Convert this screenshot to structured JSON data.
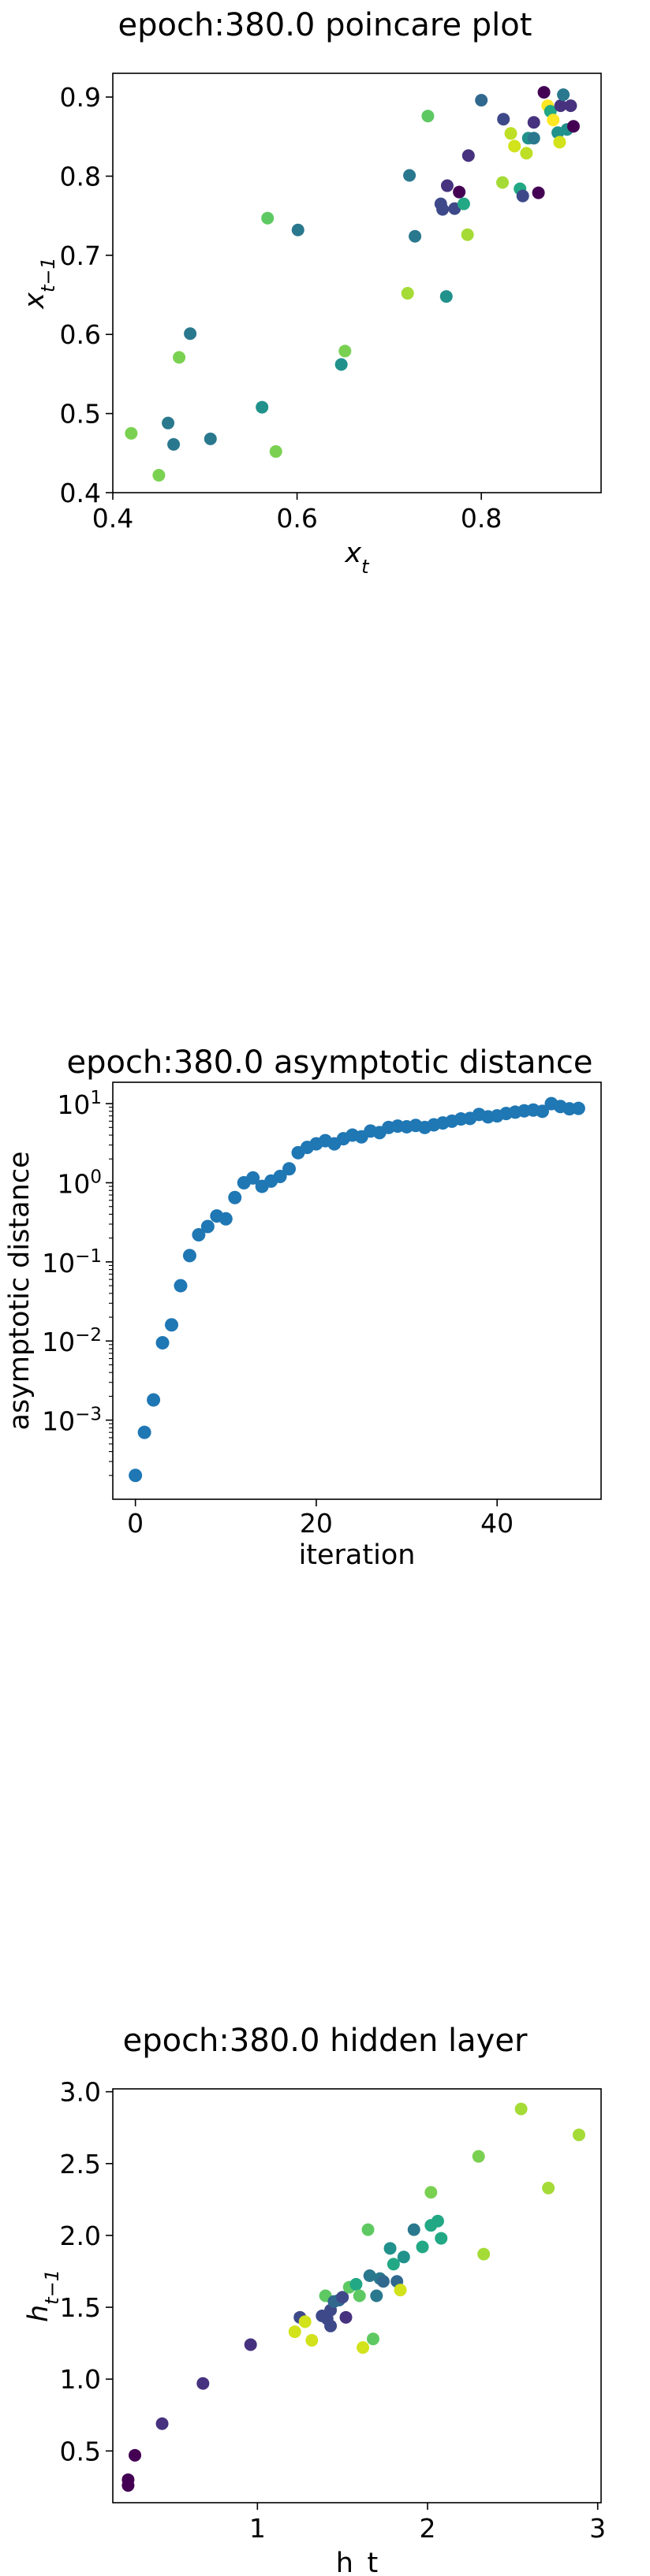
{
  "chart_data": [
    {
      "type": "scatter",
      "title": "epoch:380.0 poincare plot",
      "xlabel": "x_t",
      "ylabel": "x_t−1",
      "xlim": [
        0.4,
        0.93
      ],
      "ylim": [
        0.4,
        0.93
      ],
      "xticks": [
        0.4,
        0.6,
        0.8
      ],
      "yticks": [
        0.4,
        0.5,
        0.6,
        0.7,
        0.8,
        0.9
      ],
      "xtick_labels": [
        "0.4",
        "0.6",
        "0.8"
      ],
      "ytick_labels": [
        "0.4",
        "0.5",
        "0.6",
        "0.7",
        "0.8",
        "0.9"
      ],
      "colormap": "viridis",
      "points": [
        {
          "x": 0.42,
          "y": 0.475,
          "c": "#7ad151"
        },
        {
          "x": 0.45,
          "y": 0.422,
          "c": "#7ad151"
        },
        {
          "x": 0.46,
          "y": 0.488,
          "c": "#2a788e"
        },
        {
          "x": 0.466,
          "y": 0.461,
          "c": "#2a788e"
        },
        {
          "x": 0.472,
          "y": 0.571,
          "c": "#7ad151"
        },
        {
          "x": 0.484,
          "y": 0.601,
          "c": "#2a788e"
        },
        {
          "x": 0.506,
          "y": 0.468,
          "c": "#2a788e"
        },
        {
          "x": 0.562,
          "y": 0.508,
          "c": "#21918c"
        },
        {
          "x": 0.568,
          "y": 0.747,
          "c": "#5ec962"
        },
        {
          "x": 0.577,
          "y": 0.452,
          "c": "#7ad151"
        },
        {
          "x": 0.601,
          "y": 0.732,
          "c": "#2a788e"
        },
        {
          "x": 0.648,
          "y": 0.562,
          "c": "#21918c"
        },
        {
          "x": 0.652,
          "y": 0.579,
          "c": "#7ad151"
        },
        {
          "x": 0.72,
          "y": 0.652,
          "c": "#a5db36"
        },
        {
          "x": 0.722,
          "y": 0.801,
          "c": "#2a788e"
        },
        {
          "x": 0.728,
          "y": 0.724,
          "c": "#2a788e"
        },
        {
          "x": 0.742,
          "y": 0.876,
          "c": "#5ec962"
        },
        {
          "x": 0.756,
          "y": 0.765,
          "c": "#3e4989"
        },
        {
          "x": 0.758,
          "y": 0.758,
          "c": "#3e4989"
        },
        {
          "x": 0.762,
          "y": 0.648,
          "c": "#21918c"
        },
        {
          "x": 0.763,
          "y": 0.788,
          "c": "#46327e"
        },
        {
          "x": 0.771,
          "y": 0.759,
          "c": "#3e4989"
        },
        {
          "x": 0.776,
          "y": 0.78,
          "c": "#440154"
        },
        {
          "x": 0.781,
          "y": 0.765,
          "c": "#22a884"
        },
        {
          "x": 0.785,
          "y": 0.726,
          "c": "#a5db36"
        },
        {
          "x": 0.786,
          "y": 0.826,
          "c": "#46327e"
        },
        {
          "x": 0.8,
          "y": 0.896,
          "c": "#31688e"
        },
        {
          "x": 0.823,
          "y": 0.792,
          "c": "#a5db36"
        },
        {
          "x": 0.824,
          "y": 0.872,
          "c": "#3e4989"
        },
        {
          "x": 0.832,
          "y": 0.854,
          "c": "#bddf26"
        },
        {
          "x": 0.836,
          "y": 0.838,
          "c": "#d2e21b"
        },
        {
          "x": 0.842,
          "y": 0.784,
          "c": "#22a884"
        },
        {
          "x": 0.845,
          "y": 0.775,
          "c": "#3e4989"
        },
        {
          "x": 0.849,
          "y": 0.829,
          "c": "#bddf26"
        },
        {
          "x": 0.851,
          "y": 0.848,
          "c": "#21918c"
        },
        {
          "x": 0.857,
          "y": 0.868,
          "c": "#46327e"
        },
        {
          "x": 0.857,
          "y": 0.848,
          "c": "#2a788e"
        },
        {
          "x": 0.862,
          "y": 0.779,
          "c": "#440154"
        },
        {
          "x": 0.868,
          "y": 0.906,
          "c": "#440154"
        },
        {
          "x": 0.872,
          "y": 0.889,
          "c": "#fde725"
        },
        {
          "x": 0.875,
          "y": 0.882,
          "c": "#22a884"
        },
        {
          "x": 0.878,
          "y": 0.871,
          "c": "#fde725"
        },
        {
          "x": 0.883,
          "y": 0.855,
          "c": "#21918c"
        },
        {
          "x": 0.885,
          "y": 0.843,
          "c": "#d2e21b"
        },
        {
          "x": 0.886,
          "y": 0.889,
          "c": "#46327e"
        },
        {
          "x": 0.889,
          "y": 0.903,
          "c": "#2a788e"
        },
        {
          "x": 0.893,
          "y": 0.859,
          "c": "#21918c"
        },
        {
          "x": 0.897,
          "y": 0.889,
          "c": "#46327e"
        },
        {
          "x": 0.9,
          "y": 0.863,
          "c": "#440154"
        }
      ]
    },
    {
      "type": "scatter",
      "title": "epoch:380.0 asymptotic distance",
      "xlabel": "iteration",
      "ylabel": "asymptotic distance",
      "yscale": "log",
      "xlim": [
        -2.5,
        51.5
      ],
      "ylim_log10": [
        -4.0,
        1.27
      ],
      "xticks": [
        0,
        20,
        40
      ],
      "xtick_labels": [
        "0",
        "20",
        "40"
      ],
      "yticks_log10": [
        -3,
        -2,
        -1,
        0,
        1
      ],
      "ytick_labels": [
        "10−3",
        "10−2",
        "10−1",
        "100",
        "101"
      ],
      "color": "#1f77b4",
      "x": [
        0,
        1,
        2,
        3,
        4,
        5,
        6,
        7,
        8,
        9,
        10,
        11,
        12,
        13,
        14,
        15,
        16,
        17,
        18,
        19,
        20,
        21,
        22,
        23,
        24,
        25,
        26,
        27,
        28,
        29,
        30,
        31,
        32,
        33,
        34,
        35,
        36,
        37,
        38,
        39,
        40,
        41,
        42,
        43,
        44,
        45,
        46,
        47,
        48,
        49
      ],
      "y": [
        0.0002,
        0.0007,
        0.0018,
        0.0095,
        0.016,
        0.05,
        0.12,
        0.22,
        0.28,
        0.38,
        0.35,
        0.65,
        1.0,
        1.15,
        0.9,
        1.05,
        1.2,
        1.5,
        2.4,
        2.8,
        3.1,
        3.4,
        3.1,
        3.6,
        4.0,
        3.8,
        4.5,
        4.3,
        5.0,
        5.2,
        5.1,
        5.3,
        5.0,
        5.4,
        5.7,
        6.0,
        6.4,
        6.5,
        7.3,
        6.8,
        7.0,
        7.5,
        7.8,
        8.1,
        8.3,
        8.0,
        10.0,
        9.2,
        8.6,
        8.7
      ]
    },
    {
      "type": "scatter",
      "title": "epoch:380.0 hidden layer",
      "xlabel": "h_t",
      "ylabel": "h_t−1",
      "xlim": [
        0.15,
        3.02
      ],
      "ylim": [
        0.14,
        3.02
      ],
      "xticks": [
        1,
        2,
        3
      ],
      "xtick_labels": [
        "1",
        "2",
        "3"
      ],
      "yticks": [
        0.5,
        1.0,
        1.5,
        2.0,
        2.5,
        3.0
      ],
      "ytick_labels": [
        "0.5",
        "1.0",
        "1.5",
        "2.0",
        "2.5",
        "3.0"
      ],
      "colormap": "viridis",
      "points": [
        {
          "x": 0.24,
          "y": 0.26,
          "c": "#440154"
        },
        {
          "x": 0.24,
          "y": 0.3,
          "c": "#440154"
        },
        {
          "x": 0.28,
          "y": 0.47,
          "c": "#440154"
        },
        {
          "x": 0.44,
          "y": 0.69,
          "c": "#46327e"
        },
        {
          "x": 0.68,
          "y": 0.97,
          "c": "#46327e"
        },
        {
          "x": 0.96,
          "y": 1.24,
          "c": "#46327e"
        },
        {
          "x": 1.22,
          "y": 1.33,
          "c": "#d2e21b"
        },
        {
          "x": 1.25,
          "y": 1.43,
          "c": "#3e4989"
        },
        {
          "x": 1.28,
          "y": 1.4,
          "c": "#d2e21b"
        },
        {
          "x": 1.32,
          "y": 1.27,
          "c": "#d2e21b"
        },
        {
          "x": 1.38,
          "y": 1.44,
          "c": "#3e4989"
        },
        {
          "x": 1.4,
          "y": 1.58,
          "c": "#5ec962"
        },
        {
          "x": 1.41,
          "y": 1.42,
          "c": "#3e4989"
        },
        {
          "x": 1.43,
          "y": 1.48,
          "c": "#3e4989"
        },
        {
          "x": 1.43,
          "y": 1.37,
          "c": "#3e4989"
        },
        {
          "x": 1.45,
          "y": 1.54,
          "c": "#31688e"
        },
        {
          "x": 1.48,
          "y": 1.55,
          "c": "#31688e"
        },
        {
          "x": 1.5,
          "y": 1.57,
          "c": "#3e4989"
        },
        {
          "x": 1.52,
          "y": 1.43,
          "c": "#46327e"
        },
        {
          "x": 1.54,
          "y": 1.64,
          "c": "#5ec962"
        },
        {
          "x": 1.58,
          "y": 1.66,
          "c": "#22a884"
        },
        {
          "x": 1.6,
          "y": 1.58,
          "c": "#5ec962"
        },
        {
          "x": 1.62,
          "y": 1.22,
          "c": "#d2e21b"
        },
        {
          "x": 1.65,
          "y": 2.04,
          "c": "#5ec962"
        },
        {
          "x": 1.66,
          "y": 1.72,
          "c": "#2a788e"
        },
        {
          "x": 1.68,
          "y": 1.28,
          "c": "#5ec962"
        },
        {
          "x": 1.7,
          "y": 1.58,
          "c": "#2a788e"
        },
        {
          "x": 1.72,
          "y": 1.7,
          "c": "#2a788e"
        },
        {
          "x": 1.74,
          "y": 1.68,
          "c": "#31688e"
        },
        {
          "x": 1.78,
          "y": 1.91,
          "c": "#21918c"
        },
        {
          "x": 1.8,
          "y": 1.8,
          "c": "#22a884"
        },
        {
          "x": 1.82,
          "y": 1.68,
          "c": "#31688e"
        },
        {
          "x": 1.84,
          "y": 1.62,
          "c": "#d2e21b"
        },
        {
          "x": 1.86,
          "y": 1.85,
          "c": "#21918c"
        },
        {
          "x": 1.92,
          "y": 2.04,
          "c": "#2a788e"
        },
        {
          "x": 1.97,
          "y": 1.92,
          "c": "#22a884"
        },
        {
          "x": 2.02,
          "y": 2.3,
          "c": "#7ad151"
        },
        {
          "x": 2.02,
          "y": 2.07,
          "c": "#22a884"
        },
        {
          "x": 2.06,
          "y": 2.1,
          "c": "#22a884"
        },
        {
          "x": 2.08,
          "y": 1.98,
          "c": "#22a884"
        },
        {
          "x": 2.3,
          "y": 2.55,
          "c": "#7ad151"
        },
        {
          "x": 2.33,
          "y": 1.87,
          "c": "#a5db36"
        },
        {
          "x": 2.55,
          "y": 2.88,
          "c": "#a5db36"
        },
        {
          "x": 2.71,
          "y": 2.33,
          "c": "#a5db36"
        },
        {
          "x": 2.89,
          "y": 2.7,
          "c": "#a5db36"
        }
      ]
    }
  ]
}
